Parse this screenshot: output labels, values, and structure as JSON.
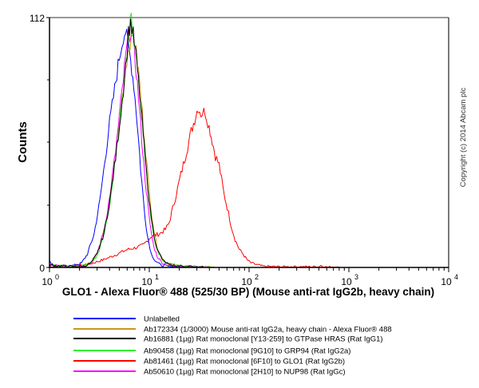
{
  "chart_data": {
    "type": "line",
    "title": "",
    "xlabel": "GLO1 - Alexa Fluor® 488 (525/30 BP) (Mouse anti-rat IgG2b, heavy chain)",
    "ylabel": "Counts",
    "xscale": "log",
    "xlim": [
      1,
      10000
    ],
    "ylim": [
      0,
      112
    ],
    "y_tick_labels": [
      "0",
      "112"
    ],
    "x_tick_labels": [
      {
        "base": "10",
        "exp": "0",
        "value": 1
      },
      {
        "base": "10",
        "exp": "1",
        "value": 10
      },
      {
        "base": "10",
        "exp": "2",
        "value": 100
      },
      {
        "base": "10",
        "exp": "3",
        "value": 1000
      },
      {
        "base": "10",
        "exp": "4",
        "value": 10000
      }
    ],
    "grid": false,
    "legend_position": "bottom",
    "annotation": "Copyright (c) 2014 Abcam plc",
    "series": [
      {
        "name": "Unlabelled",
        "color": "#0000FF",
        "points": [
          [
            1.0,
            3
          ],
          [
            1.1,
            1
          ],
          [
            1.4,
            0.5
          ],
          [
            1.8,
            1
          ],
          [
            2.1,
            2
          ],
          [
            2.4,
            6
          ],
          [
            2.8,
            15
          ],
          [
            3.2,
            30
          ],
          [
            3.6,
            48
          ],
          [
            4.0,
            65
          ],
          [
            4.5,
            80
          ],
          [
            5.0,
            94
          ],
          [
            5.5,
            104
          ],
          [
            5.8,
            106
          ],
          [
            6.1,
            100
          ],
          [
            6.5,
            93
          ],
          [
            7.0,
            82
          ],
          [
            7.6,
            64
          ],
          [
            8.2,
            44
          ],
          [
            8.9,
            26
          ],
          [
            9.6,
            14
          ],
          [
            10.5,
            6
          ],
          [
            11.5,
            3
          ],
          [
            13,
            1
          ],
          [
            16,
            0.4
          ],
          [
            25,
            0.2
          ],
          [
            40,
            0
          ]
        ]
      },
      {
        "name": "Ab172334 (1/3000) Mouse anti-rat IgG2a, heavy chain - Alexa Fluor® 488",
        "color": "#C8961E",
        "points": [
          [
            1.0,
            1
          ],
          [
            1.5,
            0.5
          ],
          [
            2.2,
            0.5
          ],
          [
            2.6,
            2
          ],
          [
            3.0,
            6
          ],
          [
            3.5,
            16
          ],
          [
            4.0,
            30
          ],
          [
            4.6,
            50
          ],
          [
            5.2,
            72
          ],
          [
            5.8,
            90
          ],
          [
            6.3,
            100
          ],
          [
            6.8,
            105
          ],
          [
            7.2,
            100
          ],
          [
            7.8,
            88
          ],
          [
            8.5,
            70
          ],
          [
            9.2,
            52
          ],
          [
            10.0,
            34
          ],
          [
            11.0,
            18
          ],
          [
            12.0,
            9
          ],
          [
            13.5,
            4
          ],
          [
            15,
            2
          ],
          [
            20,
            0.6
          ],
          [
            30,
            0.3
          ],
          [
            45,
            0
          ]
        ]
      },
      {
        "name": "Ab16881 (1µg) Rat monoclonal [Y13-259] to GTPase HRAS (Rat IgG1)",
        "color": "#000000",
        "points": [
          [
            1.0,
            1
          ],
          [
            1.5,
            0.5
          ],
          [
            2.2,
            0.5
          ],
          [
            2.6,
            2
          ],
          [
            3.0,
            6
          ],
          [
            3.5,
            15
          ],
          [
            4.0,
            29
          ],
          [
            4.6,
            49
          ],
          [
            5.2,
            70
          ],
          [
            5.8,
            90
          ],
          [
            6.2,
            105
          ],
          [
            6.5,
            110
          ],
          [
            6.9,
            104
          ],
          [
            7.4,
            94
          ],
          [
            8.0,
            78
          ],
          [
            8.7,
            60
          ],
          [
            9.4,
            42
          ],
          [
            10.2,
            26
          ],
          [
            11.2,
            14
          ],
          [
            12.3,
            7
          ],
          [
            13.8,
            3
          ],
          [
            16,
            1
          ],
          [
            22,
            0.5
          ],
          [
            35,
            0
          ]
        ]
      },
      {
        "name": "Ab90458 (1µg) Rat monoclonal [9G10] to GRP94 (Rat IgG2a)",
        "color": "#33EE33",
        "points": [
          [
            1.0,
            1
          ],
          [
            1.5,
            0.5
          ],
          [
            2.2,
            0.8
          ],
          [
            2.6,
            2
          ],
          [
            3.0,
            5
          ],
          [
            3.5,
            14
          ],
          [
            4.0,
            28
          ],
          [
            4.6,
            48
          ],
          [
            5.2,
            70
          ],
          [
            5.8,
            92
          ],
          [
            6.3,
            106
          ],
          [
            6.6,
            112
          ],
          [
            7.0,
            104
          ],
          [
            7.5,
            92
          ],
          [
            8.1,
            76
          ],
          [
            8.8,
            57
          ],
          [
            9.5,
            39
          ],
          [
            10.3,
            24
          ],
          [
            11.3,
            12
          ],
          [
            12.5,
            6
          ],
          [
            14,
            2.5
          ],
          [
            17,
            1
          ],
          [
            25,
            0.5
          ],
          [
            40,
            0
          ]
        ]
      },
      {
        "name": "Ab81461 (1µg) Rat monoclonal [6F10] to GLO1 (Rat IgG2b)",
        "color": "#FF0000",
        "points": [
          [
            1.0,
            0.3
          ],
          [
            1.6,
            0.5
          ],
          [
            2.5,
            1.5
          ],
          [
            3.5,
            3.5
          ],
          [
            4.5,
            5.5
          ],
          [
            6.0,
            8
          ],
          [
            7.5,
            9
          ],
          [
            8.7,
            10
          ],
          [
            10.5,
            14
          ],
          [
            12.6,
            15
          ],
          [
            14.5,
            17
          ],
          [
            15.8,
            20
          ],
          [
            18.2,
            31
          ],
          [
            21.9,
            46
          ],
          [
            26.3,
            61
          ],
          [
            30.9,
            72
          ],
          [
            33.0,
            69
          ],
          [
            36.3,
            70
          ],
          [
            39.8,
            63
          ],
          [
            41.7,
            59
          ],
          [
            46,
            50
          ],
          [
            50.1,
            46
          ],
          [
            56,
            33
          ],
          [
            60.3,
            27
          ],
          [
            66,
            19
          ],
          [
            72.4,
            12.5
          ],
          [
            80,
            8
          ],
          [
            87.1,
            6
          ],
          [
            95,
            3.5
          ],
          [
            104.7,
            2
          ],
          [
            125,
            1
          ],
          [
            138,
            0.5
          ],
          [
            200,
            0.3
          ],
          [
            500,
            0.3
          ],
          [
            520,
            1
          ],
          [
            560,
            0.2
          ],
          [
            800,
            0
          ]
        ]
      },
      {
        "name": "Ab50610 (1µg) Rat monoclonal [2H10] to NUP98 (Rat IgGc)",
        "color": "#FF00FF",
        "points": [
          [
            1.0,
            1
          ],
          [
            1.5,
            0.5
          ],
          [
            2.2,
            0.6
          ],
          [
            2.6,
            2
          ],
          [
            3.0,
            6
          ],
          [
            3.5,
            16
          ],
          [
            4.0,
            31
          ],
          [
            4.6,
            52
          ],
          [
            5.2,
            74
          ],
          [
            5.8,
            94
          ],
          [
            6.2,
            104
          ],
          [
            6.5,
            106
          ],
          [
            6.9,
            100
          ],
          [
            7.4,
            88
          ],
          [
            8.0,
            70
          ],
          [
            8.6,
            52
          ],
          [
            9.3,
            35
          ],
          [
            10.1,
            20
          ],
          [
            11.0,
            10
          ],
          [
            12.0,
            5
          ],
          [
            13.5,
            2
          ],
          [
            16,
            0.8
          ],
          [
            25,
            0.3
          ],
          [
            40,
            0
          ]
        ]
      }
    ]
  },
  "axes": {
    "ylabel": "Counts",
    "xlabel": "GLO1 - Alexa Fluor® 488 (525/30 BP) (Mouse anti-rat IgG2b, heavy chain)",
    "y_max_label": "112",
    "y_min_label": "0"
  },
  "copyright": "Copyright (c) 2014 Abcam plc",
  "legend": [
    {
      "label": "Unlabelled",
      "color": "#0000FF"
    },
    {
      "label": "Ab172334 (1/3000) Mouse anti-rat IgG2a, heavy chain - Alexa Fluor® 488",
      "color": "#C8961E"
    },
    {
      "label": "Ab16881 (1µg) Rat monoclonal [Y13-259] to GTPase HRAS (Rat IgG1)",
      "color": "#000000"
    },
    {
      "label": "Ab90458 (1µg) Rat monoclonal [9G10] to GRP94 (Rat IgG2a)",
      "color": "#33EE33"
    },
    {
      "label": "Ab81461 (1µg) Rat monoclonal [6F10] to GLO1 (Rat IgG2b)",
      "color": "#FF0000"
    },
    {
      "label": "Ab50610 (1µg) Rat monoclonal [2H10] to NUP98 (Rat IgGc)",
      "color": "#FF00FF"
    }
  ]
}
